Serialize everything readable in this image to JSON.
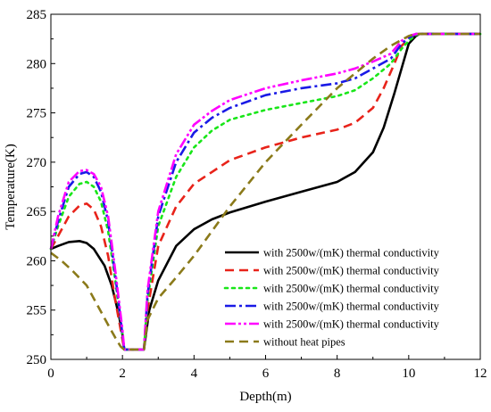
{
  "chart_data": {
    "type": "line",
    "xlabel": "Depth(m)",
    "ylabel": "Temperature(K)",
    "xlim": [
      0,
      12
    ],
    "ylim": [
      250,
      285
    ],
    "xticks": [
      0,
      2,
      4,
      6,
      8,
      10,
      12
    ],
    "yticks": [
      250,
      255,
      260,
      265,
      270,
      275,
      280,
      285
    ],
    "grid": false,
    "legend_position": "bottom-right",
    "series": [
      {
        "name": "with 2500w/(mK) thermal conductivity",
        "color": "#000000",
        "dash": "solid",
        "x": [
          0,
          0.2,
          0.5,
          0.8,
          1.0,
          1.2,
          1.5,
          1.7,
          1.9,
          2.0,
          2.05,
          2.6,
          2.75,
          3.0,
          3.5,
          4.0,
          4.5,
          5.0,
          6.0,
          7.0,
          8.0,
          8.5,
          9.0,
          9.3,
          9.6,
          9.8,
          10.0,
          10.2,
          10.3,
          12.0
        ],
        "y": [
          261.2,
          261.5,
          261.9,
          262.0,
          261.8,
          261.2,
          259.5,
          257.5,
          254.5,
          252.5,
          251.0,
          251.0,
          255.0,
          258.0,
          261.5,
          263.2,
          264.2,
          264.9,
          266.0,
          267.0,
          268.0,
          269.0,
          271.0,
          273.5,
          277.0,
          279.5,
          282.0,
          282.8,
          283.0,
          283.0
        ]
      },
      {
        "name": "with 2500w/(mK) thermal conductivity",
        "color": "#e8231a",
        "dash": "dashed",
        "x": [
          0,
          0.2,
          0.5,
          0.8,
          1.0,
          1.2,
          1.4,
          1.6,
          1.8,
          2.0,
          2.05,
          2.6,
          2.7,
          3.0,
          3.5,
          4.0,
          4.5,
          5.0,
          6.0,
          7.0,
          8.0,
          8.5,
          9.0,
          9.3,
          9.6,
          9.8,
          10.0,
          10.2,
          10.3,
          12.0
        ],
        "y": [
          261.2,
          262.5,
          264.5,
          265.6,
          265.8,
          265.2,
          263.5,
          260.5,
          256.0,
          252.0,
          251.0,
          251.0,
          255.0,
          261.5,
          265.5,
          267.8,
          269.0,
          270.2,
          271.5,
          272.5,
          273.3,
          274.0,
          275.5,
          277.5,
          280.0,
          281.8,
          282.5,
          283.0,
          283.0,
          283.0
        ]
      },
      {
        "name": "with 2500w/(mK) thermal conductivity",
        "color": "#19e619",
        "dash": "dotted",
        "x": [
          0,
          0.2,
          0.5,
          0.8,
          1.0,
          1.2,
          1.4,
          1.6,
          1.8,
          2.0,
          2.05,
          2.6,
          2.7,
          3.0,
          3.5,
          4.0,
          4.5,
          5.0,
          6.0,
          7.0,
          8.0,
          8.5,
          9.0,
          9.5,
          9.8,
          10.0,
          10.2,
          10.3,
          12.0
        ],
        "y": [
          261.2,
          263.5,
          266.5,
          267.8,
          268.0,
          267.5,
          266.0,
          263.0,
          258.0,
          252.5,
          251.0,
          251.0,
          256.0,
          263.5,
          268.5,
          271.5,
          273.2,
          274.3,
          275.3,
          276.0,
          276.7,
          277.3,
          278.5,
          280.0,
          281.5,
          282.3,
          282.9,
          283.0,
          283.0
        ]
      },
      {
        "name": "with 2500w/(mK) thermal conductivity",
        "color": "#1a1ae6",
        "dash": "dashdot",
        "x": [
          0,
          0.2,
          0.5,
          0.8,
          1.0,
          1.2,
          1.4,
          1.6,
          1.8,
          2.0,
          2.05,
          2.6,
          2.7,
          3.0,
          3.5,
          4.0,
          4.5,
          5.0,
          6.0,
          7.0,
          8.0,
          8.5,
          9.0,
          9.5,
          9.8,
          10.0,
          10.2,
          10.3,
          12.0
        ],
        "y": [
          261.2,
          264.0,
          267.5,
          268.8,
          269.0,
          268.5,
          267.0,
          264.0,
          258.5,
          252.5,
          251.0,
          251.0,
          256.5,
          264.5,
          270.0,
          273.0,
          274.5,
          275.5,
          276.8,
          277.5,
          278.0,
          278.5,
          279.5,
          280.5,
          282.0,
          282.6,
          283.0,
          283.0,
          283.0
        ]
      },
      {
        "name": "with 2500w/(mK) thermal conductivity",
        "color": "#ff00ff",
        "dash": "dashdotdot",
        "x": [
          0,
          0.2,
          0.5,
          0.8,
          1.0,
          1.2,
          1.4,
          1.6,
          1.8,
          2.0,
          2.05,
          2.6,
          2.7,
          3.0,
          3.5,
          4.0,
          4.5,
          5.0,
          6.0,
          7.0,
          8.0,
          8.5,
          9.0,
          9.5,
          9.8,
          10.0,
          10.2,
          10.3,
          12.0
        ],
        "y": [
          261.2,
          264.5,
          268.0,
          269.1,
          269.2,
          268.8,
          267.5,
          264.5,
          259.0,
          253.0,
          251.0,
          251.0,
          257.0,
          265.0,
          270.8,
          273.8,
          275.2,
          276.3,
          277.5,
          278.3,
          279.0,
          279.5,
          280.2,
          281.0,
          282.3,
          282.8,
          283.0,
          283.0,
          283.0
        ]
      },
      {
        "name": "without heat pipes",
        "color": "#8b7a1a",
        "dash": "dashed",
        "x": [
          0,
          0.3,
          0.6,
          1.0,
          1.3,
          1.6,
          1.8,
          1.95,
          2.05,
          2.6,
          2.7,
          3.0,
          3.5,
          4.0,
          4.5,
          5.0,
          6.0,
          7.0,
          8.0,
          9.0,
          9.5,
          10.0,
          10.2,
          10.3,
          12.0
        ],
        "y": [
          260.8,
          260.0,
          259.0,
          257.5,
          255.5,
          253.5,
          252.2,
          251.3,
          251.0,
          251.0,
          254.0,
          256.2,
          258.3,
          260.5,
          263.0,
          265.5,
          270.0,
          273.8,
          277.5,
          280.5,
          281.8,
          282.8,
          283.0,
          283.0,
          283.0
        ]
      }
    ]
  }
}
